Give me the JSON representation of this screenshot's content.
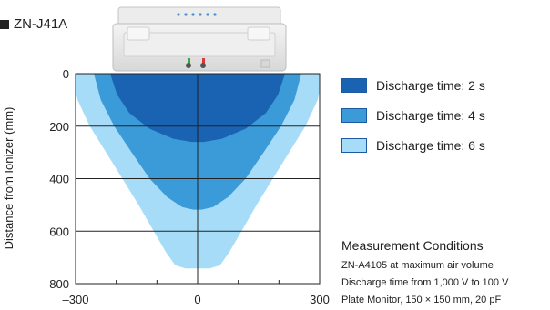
{
  "model": "ZN-J41A",
  "chart_data": {
    "type": "area",
    "title": "",
    "xlabel": "",
    "ylabel": "Distance from Ionizer (mm)",
    "xlim": [
      -300,
      300
    ],
    "ylim": [
      800,
      0
    ],
    "x_tick_labels": [
      "–300",
      "0",
      "300"
    ],
    "y_tick_labels": [
      "0",
      "200",
      "400",
      "600",
      "800"
    ],
    "grid": true,
    "legend_position": "right",
    "series": [
      {
        "name": "Discharge time: 6 s",
        "color": "#a6dcf7",
        "boundary": [
          [
            -310,
            0
          ],
          [
            -295,
            100
          ],
          [
            -265,
            200
          ],
          [
            -225,
            300
          ],
          [
            -185,
            400
          ],
          [
            -145,
            500
          ],
          [
            -108,
            600
          ],
          [
            -78,
            680
          ],
          [
            -55,
            730
          ],
          [
            -30,
            742
          ],
          [
            30,
            742
          ],
          [
            55,
            730
          ],
          [
            78,
            680
          ],
          [
            108,
            600
          ],
          [
            145,
            500
          ],
          [
            185,
            400
          ],
          [
            225,
            300
          ],
          [
            265,
            200
          ],
          [
            295,
            100
          ],
          [
            310,
            0
          ]
        ]
      },
      {
        "name": "Discharge time: 4 s",
        "color": "#3b9ad8",
        "boundary": [
          [
            -255,
            0
          ],
          [
            -238,
            100
          ],
          [
            -205,
            200
          ],
          [
            -162,
            300
          ],
          [
            -118,
            400
          ],
          [
            -75,
            470
          ],
          [
            -38,
            508
          ],
          [
            -10,
            518
          ],
          [
            10,
            518
          ],
          [
            38,
            508
          ],
          [
            75,
            470
          ],
          [
            118,
            400
          ],
          [
            162,
            300
          ],
          [
            205,
            200
          ],
          [
            238,
            100
          ],
          [
            255,
            0
          ]
        ]
      },
      {
        "name": "Discharge time: 2 s",
        "color": "#1a63b2",
        "boundary": [
          [
            -215,
            0
          ],
          [
            -198,
            80
          ],
          [
            -168,
            150
          ],
          [
            -118,
            210
          ],
          [
            -60,
            248
          ],
          [
            -15,
            260
          ],
          [
            15,
            260
          ],
          [
            60,
            248
          ],
          [
            118,
            210
          ],
          [
            168,
            150
          ],
          [
            198,
            80
          ],
          [
            215,
            0
          ]
        ]
      }
    ]
  },
  "legend": [
    {
      "label": "Discharge time: 2 s",
      "color": "#1a63b2"
    },
    {
      "label": "Discharge time: 4 s",
      "color": "#3b9ad8"
    },
    {
      "label": "Discharge time: 6 s",
      "color": "#a6dcf7"
    }
  ],
  "conditions": {
    "heading": "Measurement Conditions",
    "lines": [
      "ZN-A4105 at maximum air volume",
      "Discharge time from 1,000 V to 100 V",
      "Plate Monitor, 150 × 150 mm, 20 pF"
    ]
  }
}
